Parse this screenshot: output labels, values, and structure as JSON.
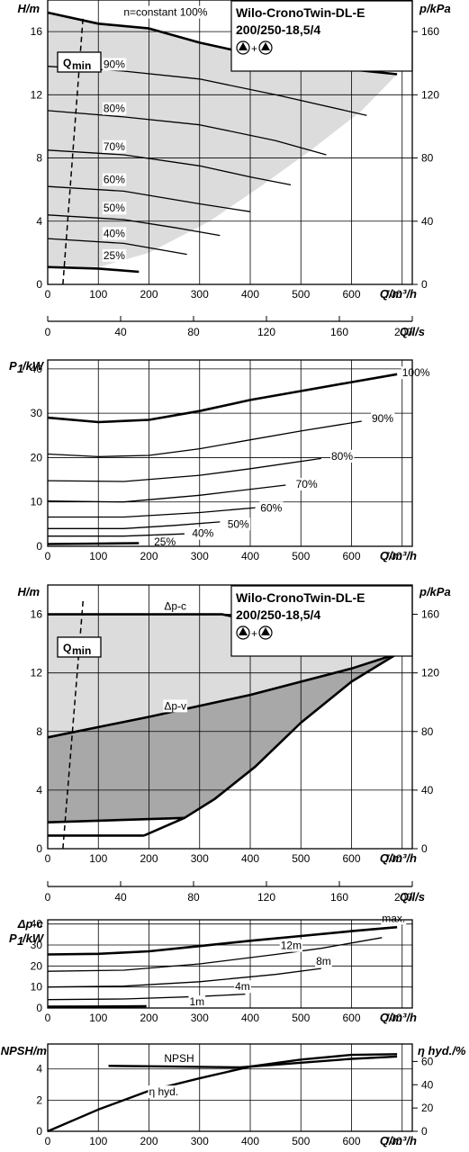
{
  "chart_data": [
    {
      "id": "h1",
      "type": "line",
      "title": "Wilo-CronoTwin-DL-E",
      "subtitle": "200/250-18,5/4",
      "symbol_plus": "+",
      "ylabel": "H/m",
      "y2label": "p/kPa",
      "xlabel": "Q/m³/h",
      "x2label": "Q/l/s",
      "xlim": [
        0,
        720
      ],
      "ylim": [
        0,
        18
      ],
      "y2lim": [
        0,
        180
      ],
      "x2lim": [
        0,
        200
      ],
      "xticks": [
        0,
        100,
        200,
        300,
        400,
        500,
        600,
        700
      ],
      "yticks": [
        0,
        4,
        8,
        12,
        16
      ],
      "y2ticks": [
        0,
        40,
        80,
        120,
        160,
        200
      ],
      "x2ticks": [
        0,
        40,
        80,
        120,
        160,
        200
      ],
      "qmin_label": "Q",
      "qmin_sub": "min",
      "qmin_line": [
        [
          30,
          0
        ],
        [
          70,
          17
        ]
      ],
      "shaded_region": [
        [
          0,
          17.2
        ],
        [
          100,
          16.5
        ],
        [
          200,
          16.2
        ],
        [
          300,
          15.3
        ],
        [
          400,
          14.6
        ],
        [
          500,
          14.0
        ],
        [
          600,
          13.6
        ],
        [
          690,
          13.3
        ],
        [
          620,
          11.0
        ],
        [
          520,
          8.5
        ],
        [
          420,
          6.2
        ],
        [
          320,
          4.0
        ],
        [
          200,
          2.0
        ],
        [
          100,
          1.1
        ],
        [
          0,
          1.2
        ]
      ],
      "grid": true,
      "series": [
        {
          "name": "n=constant 100%",
          "label_at": [
            150,
            17.0
          ],
          "values": [
            [
              0,
              17.2
            ],
            [
              100,
              16.5
            ],
            [
              200,
              16.2
            ],
            [
              300,
              15.3
            ],
            [
              400,
              14.6
            ],
            [
              500,
              14.0
            ],
            [
              600,
              13.6
            ],
            [
              690,
              13.3
            ]
          ]
        },
        {
          "name": "90%",
          "label_at": [
            110,
            13.7
          ],
          "values": [
            [
              0,
              13.8
            ],
            [
              150,
              13.5
            ],
            [
              300,
              13.0
            ],
            [
              450,
              12.0
            ],
            [
              630,
              10.7
            ]
          ]
        },
        {
          "name": "80%",
          "label_at": [
            110,
            10.9
          ],
          "values": [
            [
              0,
              11.0
            ],
            [
              150,
              10.6
            ],
            [
              300,
              10.1
            ],
            [
              450,
              9.1
            ],
            [
              550,
              8.2
            ]
          ]
        },
        {
          "name": "70%",
          "label_at": [
            110,
            8.5
          ],
          "values": [
            [
              0,
              8.5
            ],
            [
              150,
              8.2
            ],
            [
              300,
              7.5
            ],
            [
              400,
              6.8
            ],
            [
              480,
              6.3
            ]
          ]
        },
        {
          "name": "60%",
          "label_at": [
            110,
            6.4
          ],
          "values": [
            [
              0,
              6.2
            ],
            [
              150,
              5.9
            ],
            [
              300,
              5.1
            ],
            [
              400,
              4.6
            ]
          ]
        },
        {
          "name": "50%",
          "label_at": [
            110,
            4.6
          ],
          "values": [
            [
              0,
              4.4
            ],
            [
              150,
              4.1
            ],
            [
              250,
              3.6
            ],
            [
              340,
              3.1
            ]
          ]
        },
        {
          "name": "40%",
          "label_at": [
            110,
            3.0
          ],
          "values": [
            [
              0,
              2.9
            ],
            [
              150,
              2.6
            ],
            [
              275,
              1.9
            ]
          ]
        },
        {
          "name": "25%",
          "label_at": [
            110,
            1.6
          ],
          "values": [
            [
              0,
              1.1
            ],
            [
              100,
              1.0
            ],
            [
              180,
              0.8
            ]
          ]
        }
      ]
    },
    {
      "id": "x2a",
      "type": "axis",
      "xlabel": "Q/l/s",
      "xticks": [
        0,
        40,
        80,
        120,
        160,
        200
      ],
      "xlim": [
        0,
        200
      ]
    },
    {
      "id": "p1",
      "type": "line",
      "ylabel": "P1/kW",
      "ylabel_base": "P",
      "ylabel_sub": "1",
      "ylabel_unit": "/kW",
      "xlabel": "Q/m³/h",
      "xlim": [
        0,
        720
      ],
      "ylim": [
        0,
        42
      ],
      "xticks": [
        0,
        100,
        200,
        300,
        400,
        500,
        600,
        700
      ],
      "yticks": [
        0,
        10,
        20,
        30,
        40
      ],
      "grid": true,
      "series": [
        {
          "name": "100%",
          "label_at": [
            700,
            38.3
          ],
          "values": [
            [
              0,
              29.0
            ],
            [
              100,
              28.0
            ],
            [
              200,
              28.5
            ],
            [
              300,
              30.5
            ],
            [
              400,
              33.0
            ],
            [
              500,
              35.0
            ],
            [
              600,
              37.0
            ],
            [
              690,
              38.8
            ]
          ]
        },
        {
          "name": "90%",
          "label_at": [
            640,
            28.0
          ],
          "values": [
            [
              0,
              20.8
            ],
            [
              100,
              20.2
            ],
            [
              200,
              20.5
            ],
            [
              300,
              22.0
            ],
            [
              400,
              24.0
            ],
            [
              500,
              26.0
            ],
            [
              620,
              28.2
            ]
          ]
        },
        {
          "name": "80%",
          "label_at": [
            560,
            19.5
          ],
          "values": [
            [
              0,
              14.8
            ],
            [
              150,
              14.6
            ],
            [
              300,
              16.0
            ],
            [
              400,
              17.5
            ],
            [
              540,
              19.8
            ]
          ]
        },
        {
          "name": "70%",
          "label_at": [
            490,
            13.2
          ],
          "values": [
            [
              0,
              10.2
            ],
            [
              150,
              10.0
            ],
            [
              300,
              11.5
            ],
            [
              470,
              13.8
            ]
          ]
        },
        {
          "name": "60%",
          "label_at": [
            420,
            7.8
          ],
          "values": [
            [
              0,
              6.6
            ],
            [
              150,
              6.6
            ],
            [
              300,
              7.6
            ],
            [
              410,
              8.7
            ]
          ]
        },
        {
          "name": "50%",
          "label_at": [
            355,
            4.2
          ],
          "values": [
            [
              0,
              4.0
            ],
            [
              150,
              4.0
            ],
            [
              250,
              4.7
            ],
            [
              340,
              5.5
            ]
          ]
        },
        {
          "name": "40%",
          "label_at": [
            285,
            2.1
          ],
          "values": [
            [
              0,
              2.3
            ],
            [
              150,
              2.3
            ],
            [
              270,
              2.8
            ]
          ]
        },
        {
          "name": "25%",
          "label_at": [
            210,
            0.2
          ],
          "values": [
            [
              0,
              0.5
            ],
            [
              100,
              0.6
            ],
            [
              180,
              0.7
            ]
          ]
        }
      ]
    },
    {
      "id": "h2",
      "type": "area",
      "title": "Wilo-CronoTwin-DL-E",
      "subtitle": "200/250-18,5/4",
      "symbol_plus": "+",
      "ylabel": "H/m",
      "y2label": "p/kPa",
      "xlabel": "Q/m³/h",
      "xlim": [
        0,
        720
      ],
      "ylim": [
        0,
        18
      ],
      "y2lim": [
        0,
        180
      ],
      "xticks": [
        0,
        100,
        200,
        300,
        400,
        500,
        600,
        700
      ],
      "yticks": [
        0,
        4,
        8,
        12,
        16
      ],
      "y2ticks": [
        0,
        40,
        80,
        120,
        160
      ],
      "qmin_label": "Q",
      "qmin_sub": "min",
      "qmin_line": [
        [
          30,
          0
        ],
        [
          70,
          17
        ]
      ],
      "grid": true,
      "light_region": [
        [
          0,
          16
        ],
        [
          345,
          16
        ],
        [
          400,
          15.6
        ],
        [
          500,
          14.8
        ],
        [
          600,
          14.0
        ],
        [
          690,
          13.3
        ],
        [
          610,
          12.4
        ],
        [
          400,
          10.5
        ],
        [
          200,
          9.0
        ],
        [
          0,
          7.6
        ]
      ],
      "dark_region": [
        [
          0,
          7.6
        ],
        [
          200,
          9.0
        ],
        [
          400,
          10.5
        ],
        [
          600,
          12.3
        ],
        [
          690,
          13.3
        ],
        [
          600,
          11.4
        ],
        [
          500,
          8.6
        ],
        [
          410,
          5.6
        ],
        [
          330,
          3.4
        ],
        [
          270,
          2.1
        ],
        [
          260,
          2.0
        ],
        [
          0,
          1.8
        ]
      ],
      "series": [
        {
          "name": "Δp-c",
          "label_at": [
            230,
            16.3
          ],
          "values": [
            [
              0,
              16
            ],
            [
              345,
              16
            ],
            [
              400,
              15.6
            ],
            [
              500,
              14.8
            ],
            [
              600,
              14.0
            ],
            [
              690,
              13.3
            ]
          ]
        },
        {
          "name": "Δp-v",
          "label_at": [
            230,
            9.5
          ],
          "values": [
            [
              0,
              7.6
            ],
            [
              200,
              9.0
            ],
            [
              400,
              10.5
            ],
            [
              600,
              12.3
            ],
            [
              690,
              13.3
            ]
          ]
        },
        {
          "name": "max.",
          "label_at": [
            660,
            14.0
          ],
          "values": [
            [
              690,
              13.3
            ],
            [
              600,
              11.4
            ],
            [
              500,
              8.6
            ],
            [
              410,
              5.6
            ],
            [
              330,
              3.4
            ],
            [
              270,
              2.1
            ],
            [
              190,
              0.9
            ]
          ]
        },
        {
          "name": "",
          "values": [
            [
              0,
              1.8
            ],
            [
              270,
              2.1
            ]
          ]
        },
        {
          "name": "",
          "values": [
            [
              0,
              0.9
            ],
            [
              190,
              0.9
            ]
          ]
        }
      ]
    },
    {
      "id": "x2b",
      "type": "axis",
      "xlabel": "Q/l/s",
      "xticks": [
        0,
        40,
        80,
        120,
        160,
        200
      ],
      "xlim": [
        0,
        200
      ]
    },
    {
      "id": "p2",
      "type": "line",
      "ylabel_top": "Δp-c",
      "ylabel": "P1/kW",
      "ylabel_base": "P",
      "ylabel_sub": "1",
      "ylabel_unit": "/kW",
      "xlabel": "Q/m³/h",
      "xlim": [
        0,
        720
      ],
      "ylim": [
        0,
        42
      ],
      "xticks": [
        0,
        100,
        200,
        300,
        400,
        500,
        600,
        700
      ],
      "yticks": [
        0,
        10,
        20,
        30,
        40
      ],
      "grid": true,
      "series": [
        {
          "name": "max.",
          "label_at": [
            660,
            41.0
          ],
          "values": [
            [
              0,
              25.5
            ],
            [
              100,
              25.8
            ],
            [
              200,
              27.0
            ],
            [
              300,
              29.5
            ],
            [
              400,
              32.0
            ],
            [
              500,
              34.3
            ],
            [
              600,
              36.6
            ],
            [
              690,
              38.5
            ]
          ]
        },
        {
          "name": "12m",
          "label_at": [
            460,
            28.0
          ],
          "values": [
            [
              0,
              17.5
            ],
            [
              150,
              18.0
            ],
            [
              300,
              21.0
            ],
            [
              450,
              25.5
            ],
            [
              540,
              28.4
            ],
            [
              660,
              33.5
            ]
          ]
        },
        {
          "name": "8m",
          "label_at": [
            530,
            20.5
          ],
          "values": [
            [
              0,
              10.0
            ],
            [
              150,
              10.4
            ],
            [
              300,
              12.5
            ],
            [
              450,
              16.0
            ],
            [
              540,
              18.8
            ]
          ]
        },
        {
          "name": "4m",
          "label_at": [
            370,
            8.5
          ],
          "values": [
            [
              0,
              4.0
            ],
            [
              150,
              4.3
            ],
            [
              300,
              5.5
            ],
            [
              390,
              6.6
            ]
          ]
        },
        {
          "name": "1m",
          "label_at": [
            280,
            1.2
          ],
          "values": [
            [
              0,
              0.6
            ],
            [
              100,
              0.7
            ],
            [
              195,
              0.8
            ]
          ]
        }
      ]
    },
    {
      "id": "npsh",
      "type": "line",
      "ylabel": "NPSH/m",
      "y2label": "η hyd./%",
      "xlabel": "Q/m³/h",
      "xlim": [
        0,
        720
      ],
      "ylim": [
        0,
        5.6
      ],
      "y2lim": [
        0,
        75
      ],
      "xticks": [
        0,
        100,
        200,
        300,
        400,
        500,
        600,
        700
      ],
      "yticks": [
        0,
        2,
        4
      ],
      "y2ticks": [
        0,
        20,
        40,
        60
      ],
      "grid": true,
      "series": [
        {
          "name": "NPSH",
          "label_at": [
            230,
            4.45
          ],
          "values": [
            [
              120,
              4.2
            ],
            [
              250,
              4.15
            ],
            [
              380,
              4.1
            ],
            [
              500,
              4.4
            ],
            [
              600,
              4.65
            ],
            [
              690,
              4.8
            ]
          ]
        },
        {
          "name": "η hyd.",
          "label_at": [
            200,
            2.3
          ],
          "values": [
            [
              0,
              0
            ],
            [
              100,
              1.4
            ],
            [
              200,
              2.6
            ],
            [
              300,
              3.4
            ],
            [
              400,
              4.15
            ],
            [
              500,
              4.6
            ],
            [
              600,
              4.9
            ],
            [
              690,
              4.95
            ]
          ]
        }
      ]
    }
  ]
}
